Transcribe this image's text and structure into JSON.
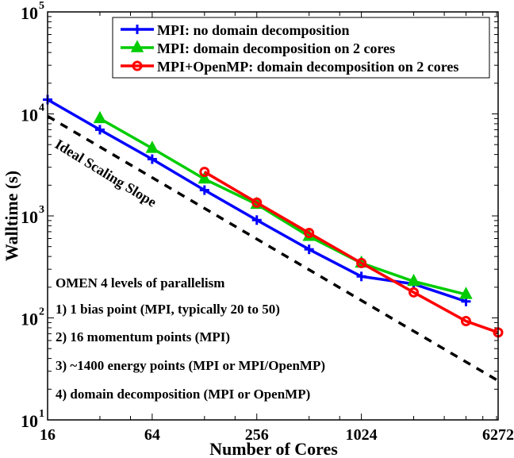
{
  "chart_data": {
    "type": "line",
    "title": "",
    "xlabel": "Number of Cores",
    "ylabel": "Walltime (s)",
    "xscale": "log2",
    "yscale": "log10",
    "xlim": [
      16,
      6272
    ],
    "ylim": [
      10,
      100000
    ],
    "xticks": [
      {
        "value": 16,
        "label": "16"
      },
      {
        "value": 64,
        "label": "64"
      },
      {
        "value": 256,
        "label": "256"
      },
      {
        "value": 1024,
        "label": "1024"
      },
      {
        "value": 6272,
        "label": "6272"
      }
    ],
    "yticks": [
      {
        "value": 10,
        "base": "10",
        "exp": "1"
      },
      {
        "value": 100,
        "base": "10",
        "exp": "2"
      },
      {
        "value": 1000,
        "base": "10",
        "exp": "3"
      },
      {
        "value": 10000,
        "base": "10",
        "exp": "4"
      },
      {
        "value": 100000,
        "base": "10",
        "exp": "5"
      }
    ],
    "grid": false,
    "legend_position": "top-right",
    "series": [
      {
        "name": "MPI: no domain decomposition",
        "color": "#0000ff",
        "marker": "plus",
        "x": [
          16,
          32,
          64,
          128,
          256,
          512,
          1024,
          2048,
          4096
        ],
        "y": [
          13800,
          7000,
          3600,
          1790,
          910,
          470,
          255,
          215,
          145
        ]
      },
      {
        "name": "MPI: domain decomposition on 2 cores",
        "color": "#00cc00",
        "marker": "triangle",
        "x": [
          32,
          64,
          128,
          256,
          512,
          1024,
          2048,
          4096
        ],
        "y": [
          9000,
          4600,
          2300,
          1300,
          630,
          345,
          228,
          170
        ]
      },
      {
        "name": "MPI+OpenMP: domain decomposition on 2 cores",
        "color": "#ff0000",
        "marker": "circle",
        "x": [
          128,
          256,
          512,
          1024,
          2048,
          4096,
          6272
        ],
        "y": [
          2700,
          1350,
          680,
          345,
          178,
          93,
          72
        ]
      }
    ],
    "reference_line": {
      "name": "Ideal Scaling Slope",
      "color": "#000000",
      "style": "dashed",
      "x": [
        16,
        6272
      ],
      "y": [
        9500,
        24.2
      ]
    },
    "annotations": {
      "ideal_label": "Ideal Scaling Slope",
      "info_title": "OMEN 4 levels of parallelism",
      "info_lines": [
        "1) 1 bias point (MPI, typically 20 to 50)",
        "2) 16 momentum points (MPI)",
        "3) ~1400 energy points (MPI or MPI/OpenMP)",
        "4) domain decomposition (MPI or OpenMP)"
      ]
    }
  }
}
